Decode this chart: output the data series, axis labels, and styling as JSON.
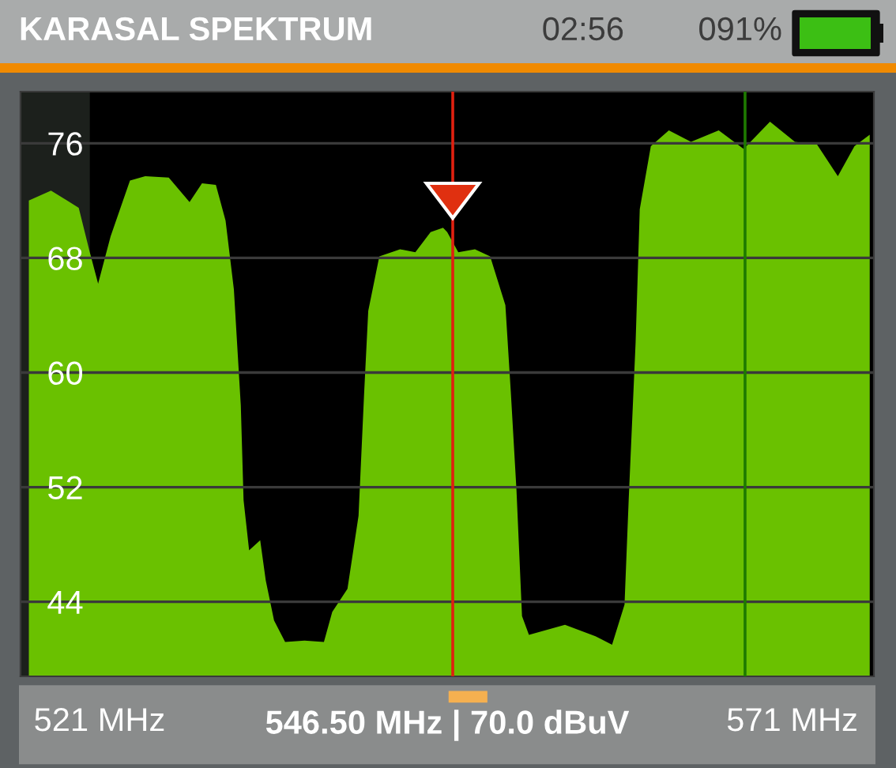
{
  "chart_data": {
    "type": "area",
    "title": "KARASAL SPEKTRUM",
    "annotations": [
      "02:56",
      "091%",
      "546.50 MHz | 70.0 dBuV"
    ],
    "series": [
      {
        "color": "#6ac100",
        "x": [
          515.9,
          517.5,
          519.5,
          520.3,
          520.9,
          521.8,
          523.2,
          524.3,
          526.0,
          527.5,
          528.4,
          529.4,
          530.1,
          530.7,
          531.2,
          531.4,
          531.8,
          532.6,
          533.0,
          533.6,
          534.4,
          535.8,
          537.2,
          537.8,
          538.9,
          539.7,
          540.1,
          540.4,
          541.2,
          542.7,
          543.8,
          544.9,
          545.8,
          546.1,
          546.9,
          548.1,
          549.2,
          550.3,
          550.7,
          551.1,
          551.5,
          552.0,
          554.6,
          556.8,
          558.0,
          558.9,
          559.2,
          559.7,
          560.0,
          560.8,
          562.1,
          563.7,
          565.7,
          567.5,
          569.4,
          571.2,
          572.8,
          574.3,
          575.5,
          576.6
        ],
        "values": [
          72.0,
          72.7,
          71.5,
          68.4,
          66.2,
          69.5,
          73.4,
          73.7,
          73.6,
          71.9,
          73.2,
          73.1,
          70.6,
          65.8,
          57.7,
          51.1,
          47.6,
          48.3,
          45.5,
          42.7,
          41.2,
          41.3,
          41.2,
          43.3,
          44.9,
          50.0,
          58.5,
          64.3,
          68.1,
          68.6,
          68.4,
          69.8,
          70.1,
          69.8,
          68.4,
          68.6,
          68.1,
          64.7,
          58.5,
          51.8,
          43.0,
          41.7,
          42.4,
          41.6,
          41.0,
          43.8,
          51.1,
          62.1,
          71.4,
          75.8,
          76.9,
          76.1,
          76.9,
          75.6,
          77.5,
          76.1,
          75.9,
          73.7,
          75.8,
          76.6
        ]
      }
    ],
    "xlim": [
      515.3,
      576.9
    ],
    "xticks": [
      {
        "value": 521,
        "label": "521 MHz"
      },
      {
        "value": 571,
        "label": "571 MHz"
      }
    ],
    "ylim": [
      38.8,
      79.6
    ],
    "yticks": [
      44,
      52,
      60,
      68,
      76
    ],
    "grid": "y",
    "ref_lines": [
      {
        "axis": "x",
        "value": 546.5,
        "label": null,
        "color": "#e02010"
      },
      {
        "axis": "x",
        "value": 567.6,
        "label": null,
        "color": "#1e7a00"
      }
    ],
    "bands": [
      {
        "axis": "x",
        "from": 515.3,
        "to": 520.3,
        "label": null,
        "color": "#1c201c"
      }
    ]
  }
}
